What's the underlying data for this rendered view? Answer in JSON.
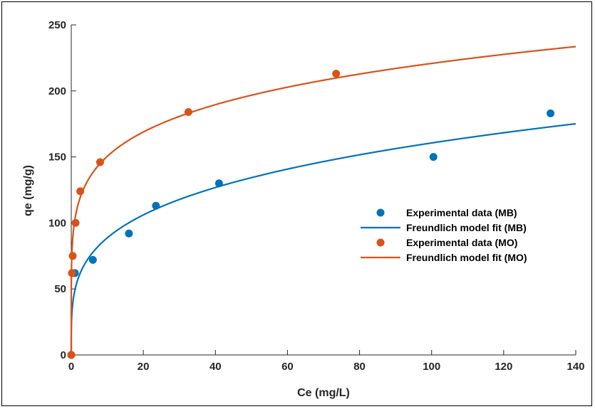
{
  "chart_data": {
    "type": "scatter",
    "title": "",
    "xlabel": "Ce (mg/L)",
    "ylabel": "qe (mg/g)",
    "xlim": [
      0,
      140
    ],
    "ylim": [
      0,
      250
    ],
    "xticks": [
      0,
      20,
      40,
      60,
      80,
      100,
      120,
      140
    ],
    "yticks": [
      0,
      50,
      100,
      150,
      200,
      250
    ],
    "grid": false,
    "legend_position": "right-center",
    "series": [
      {
        "name": "Experimental data (MB)",
        "kind": "points",
        "color": "#0072BD",
        "x": [
          0,
          1,
          6,
          16,
          23.5,
          41,
          100.5,
          133
        ],
        "y": [
          0,
          62,
          72,
          92,
          113,
          130,
          150,
          183
        ]
      },
      {
        "name": "Freundlich model fit (MB)",
        "kind": "line",
        "color": "#0072BD",
        "model": "freundlich",
        "Kf": 49.0,
        "n": 3.88
      },
      {
        "name": "Experimental data (MO)",
        "kind": "points",
        "color": "#D95319",
        "x": [
          0,
          0.2,
          0.4,
          1.2,
          2.5,
          8,
          32.5,
          73.5
        ],
        "y": [
          0,
          62,
          75,
          100,
          124,
          146,
          184,
          213
        ]
      },
      {
        "name": "Freundlich model fit (MO)",
        "kind": "line",
        "color": "#D95319",
        "model": "freundlich",
        "Kf": 102.5,
        "n": 6.0
      }
    ]
  }
}
